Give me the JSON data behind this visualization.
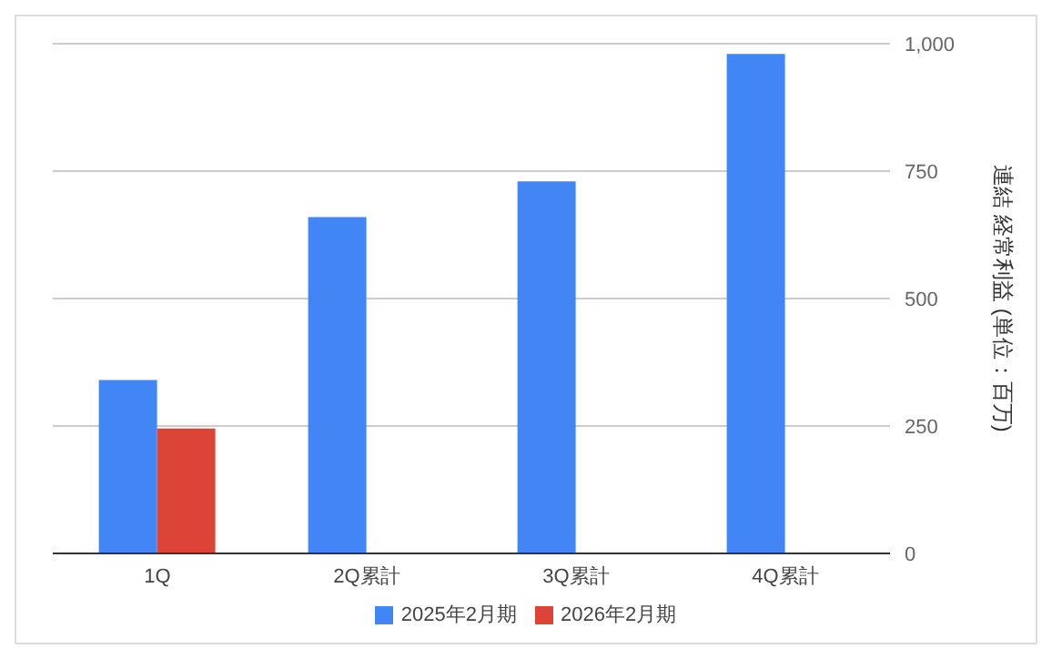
{
  "chart_data": {
    "type": "bar",
    "categories": [
      "1Q",
      "2Q累計",
      "3Q累計",
      "4Q累計"
    ],
    "series": [
      {
        "name": "2025年2月期",
        "color": "#4285f4",
        "values": [
          340,
          660,
          730,
          980
        ]
      },
      {
        "name": "2026年2月期",
        "color": "#db4437",
        "values": [
          245,
          null,
          null,
          null
        ]
      }
    ],
    "ylabel": "連結 経常利益 (単位：百万)",
    "ylim": [
      0,
      1000
    ],
    "yticks": [
      0,
      {
        "value": 250,
        "label": "250"
      },
      {
        "value": 500,
        "label": "500"
      },
      {
        "value": 750,
        "label": "750"
      },
      {
        "value": 1000,
        "label": "1,000"
      }
    ],
    "grid": "y",
    "legend": "bottom"
  }
}
